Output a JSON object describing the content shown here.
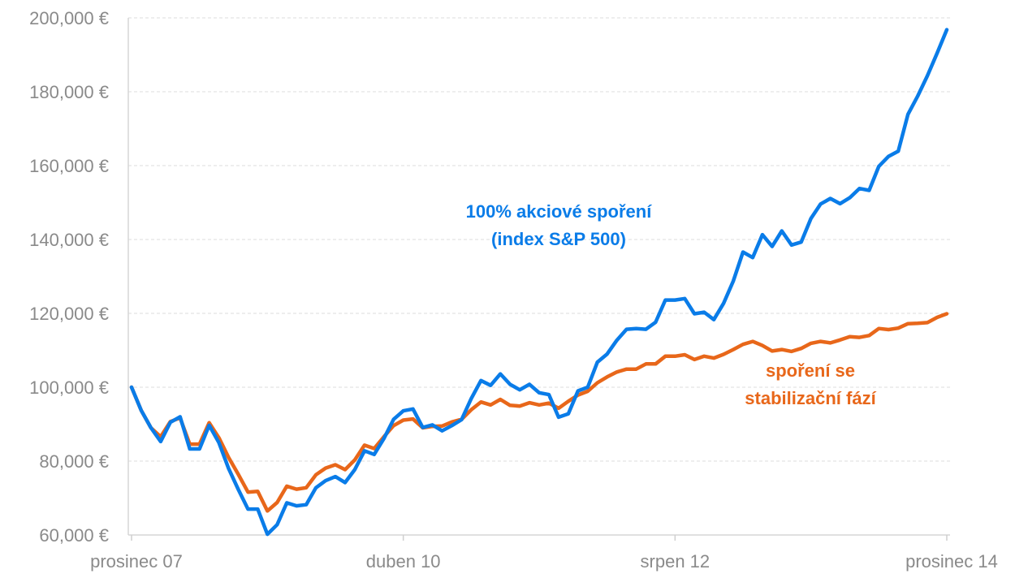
{
  "chart_data": {
    "type": "line",
    "title": "",
    "xlabel": "",
    "ylabel": "",
    "ylim": [
      60000,
      200000
    ],
    "y_ticks": [
      {
        "value": 60000,
        "label": "60,000 €"
      },
      {
        "value": 80000,
        "label": "80,000 €"
      },
      {
        "value": 100000,
        "label": "100,000 €"
      },
      {
        "value": 120000,
        "label": "120,000 €"
      },
      {
        "value": 140000,
        "label": "140,000 €"
      },
      {
        "value": 160000,
        "label": "160,000 €"
      },
      {
        "value": 180000,
        "label": "180,000 €"
      },
      {
        "value": 200000,
        "label": "200,000 €"
      }
    ],
    "x_ticks": [
      {
        "index": 0,
        "label": "prosinec 07"
      },
      {
        "index": 28,
        "label": "duben 10"
      },
      {
        "index": 56,
        "label": "srpen 12"
      },
      {
        "index": 84,
        "label": "prosinec 14"
      }
    ],
    "grid": true,
    "legend": "none",
    "series": [
      {
        "name": "100% akciové spoření\n(index S&P 500)",
        "color": "#0a7ce8",
        "values": [
          100000,
          93700,
          89000,
          85300,
          90500,
          92000,
          83300,
          83300,
          89700,
          85000,
          78000,
          72300,
          67000,
          67000,
          60200,
          62800,
          68700,
          67900,
          68200,
          72800,
          74700,
          75800,
          74200,
          77700,
          82800,
          81800,
          86100,
          91300,
          93600,
          94100,
          89100,
          89800,
          88200,
          89600,
          91200,
          96900,
          101800,
          100500,
          103600,
          100800,
          99300,
          100800,
          98500,
          98000,
          91900,
          92800,
          99000,
          100000,
          106800,
          109000,
          112700,
          115700,
          115900,
          115700,
          117600,
          123600,
          123600,
          124000,
          119900,
          120300,
          118300,
          122700,
          128700,
          136600,
          135100,
          141300,
          138100,
          142300,
          138500,
          139300,
          145700,
          149600,
          151100,
          149700,
          151300,
          153800,
          153300,
          159800,
          162500,
          163900,
          173900,
          178800,
          184300,
          190400,
          196800
        ]
      },
      {
        "name": "spoření se\nstabilizační fází",
        "color": "#e8671a",
        "values": [
          100000,
          93700,
          89000,
          86600,
          90700,
          91700,
          84600,
          84600,
          90400,
          86300,
          81000,
          76400,
          71600,
          71800,
          66500,
          68800,
          73200,
          72400,
          72800,
          76300,
          78100,
          79000,
          77700,
          80300,
          84300,
          83400,
          86600,
          89600,
          91100,
          91400,
          89000,
          89400,
          89500,
          90600,
          91300,
          93900,
          96000,
          95200,
          96700,
          95100,
          94900,
          95800,
          95200,
          95700,
          94300,
          96200,
          97900,
          98900,
          101200,
          102800,
          104100,
          104900,
          104900,
          106300,
          106300,
          108400,
          108400,
          108800,
          107500,
          108400,
          107900,
          108900,
          110200,
          111600,
          112400,
          111300,
          109800,
          110200,
          109700,
          110500,
          111900,
          112400,
          112000,
          112800,
          113700,
          113500,
          114000,
          115900,
          115600,
          116000,
          117200,
          117300,
          117500,
          118900,
          119900
        ]
      }
    ]
  }
}
